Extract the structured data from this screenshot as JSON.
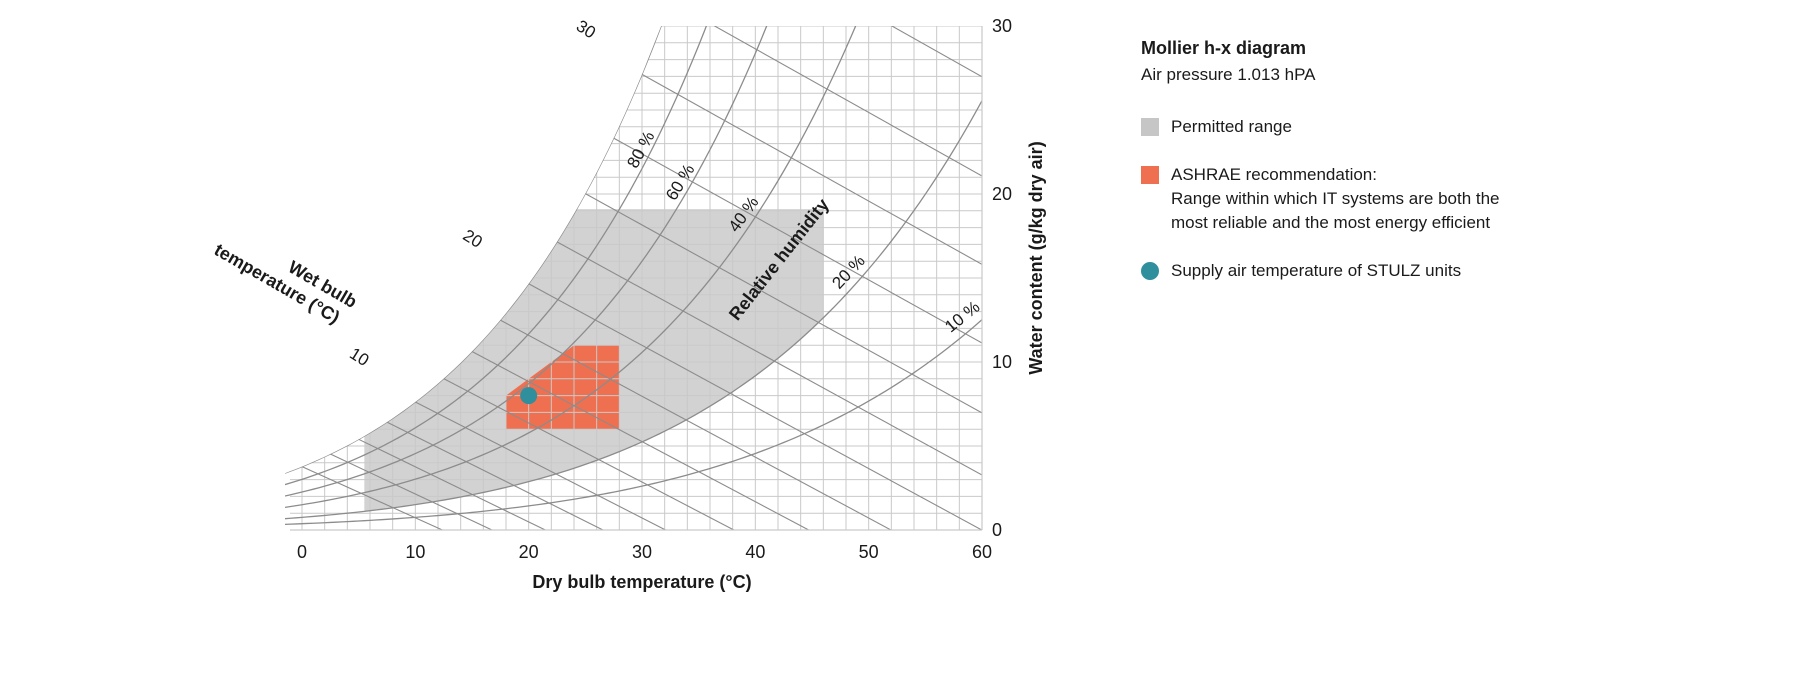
{
  "chart_data": {
    "type": "psychrometric",
    "title": "Mollier h-x diagram",
    "subtitle": "Air pressure 1.013 hPA",
    "xlabel": "Dry bulb temperature (°C)",
    "ylabel": "Water content (g/kg dry air)",
    "xlim": [
      0,
      60
    ],
    "ylim": [
      0,
      30
    ],
    "x_ticks": [
      0,
      10,
      20,
      30,
      40,
      50,
      60
    ],
    "y_ticks": [
      0,
      10,
      20,
      30
    ],
    "grid": true,
    "rh_label": "Relative humidity",
    "rh_curves": [
      {
        "rh": 0.1,
        "label": "10 %",
        "at_x": 57.5
      },
      {
        "rh": 0.2,
        "label": "20 %",
        "at_x": 47.6
      },
      {
        "rh": 0.4,
        "label": "40 %",
        "at_x": 38.5
      },
      {
        "rh": 0.6,
        "label": "60 %",
        "at_x": 33
      },
      {
        "rh": 0.8,
        "label": "80 %",
        "at_x": 29.6
      },
      {
        "rh": 1.0,
        "label": "",
        "at_x": 30
      }
    ],
    "wet_bulb_label": "Wet bulb temperature (°C)",
    "wet_bulb_lines": [
      0,
      2.5,
      5,
      7.5,
      10,
      12.5,
      15,
      17.5,
      20,
      22.5,
      25,
      27.5,
      30,
      32.5,
      35,
      37.5,
      40,
      42.5,
      45
    ],
    "wet_bulb_labels": [
      {
        "t": 10,
        "label": "10"
      },
      {
        "t": 20,
        "label": "20"
      },
      {
        "t": 30,
        "label": "30"
      }
    ],
    "permitted_range": {
      "t_min": 5.5,
      "t_max": 46,
      "w_max": 19.1,
      "rh_max": 1.0,
      "rh_min": 0.2
    },
    "ashrae_range": [
      [
        18,
        6
      ],
      [
        28,
        6
      ],
      [
        28,
        11
      ],
      [
        24,
        11
      ],
      [
        18,
        8
      ]
    ],
    "supply_point": {
      "x": 20,
      "y": 8
    }
  },
  "legend": {
    "title": "Mollier h-x diagram",
    "subtitle": "Air pressure 1.013 hPA",
    "items": [
      {
        "label": "Permitted range",
        "color": "#c6c6c6",
        "shape": "square"
      },
      {
        "label": "ASHRAE recommendation:\nRange within which IT systems are both the\nmost reliable and the most energy efficient",
        "color": "#ee7050",
        "shape": "square"
      },
      {
        "label": "Supply air temperature of STULZ units",
        "color": "#2f8f9c",
        "shape": "circle"
      }
    ]
  },
  "colors": {
    "grid": "#c9c9c9",
    "curve": "#8c8c8c",
    "permitted": "#d2d2d2",
    "ashrae": "#ee7050",
    "supply": "#2f8f9c"
  }
}
